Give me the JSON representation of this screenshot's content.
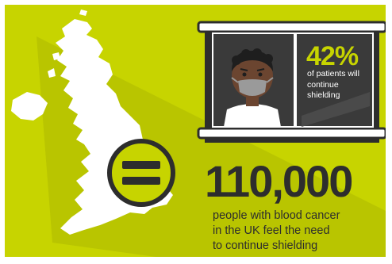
{
  "colors": {
    "background": "#c7d400",
    "shadow": "#b3bf00",
    "dark": "#2d2d2d",
    "white": "#ffffff"
  },
  "icons": [
    "uk-map-icon",
    "equals-icon",
    "window-icon",
    "patient-face-mask-icon"
  ],
  "stat": {
    "percent": "42%",
    "percent_value": 42,
    "description": "of patients will continue shielding"
  },
  "headline": {
    "number": "110,000",
    "lines": [
      "people with blood cancer",
      "in the UK feel the need",
      "to continue shielding"
    ]
  }
}
